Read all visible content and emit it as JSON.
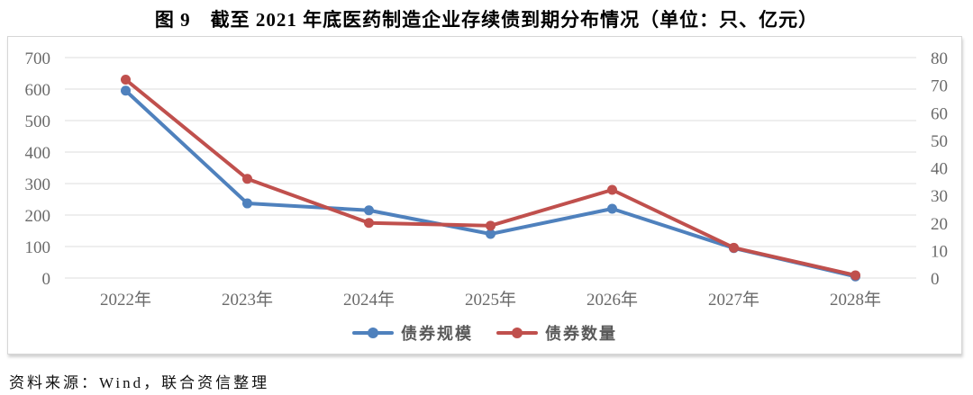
{
  "title": "图 9　截至 2021 年底医药制造企业存续债到期分布情况（单位：只、亿元）",
  "source_note": "资料来源：Wind，联合资信整理",
  "chart_data": {
    "type": "line",
    "categories": [
      "2022年",
      "2023年",
      "2024年",
      "2025年",
      "2026年",
      "2027年",
      "2028年"
    ],
    "series": [
      {
        "name": "债券规模",
        "axis": "left",
        "unit": "亿元",
        "color": "#4F81BD",
        "values": [
          595,
          237,
          215,
          140,
          220,
          95,
          5
        ]
      },
      {
        "name": "债券数量",
        "axis": "right",
        "unit": "只",
        "color": "#C0504D",
        "values": [
          72,
          36,
          20,
          19,
          32,
          11,
          1
        ]
      }
    ],
    "left_axis": {
      "min": 0,
      "max": 700,
      "step": 100
    },
    "right_axis": {
      "min": 0,
      "max": 80,
      "step": 10
    },
    "grid": true,
    "legend_position": "bottom",
    "gridline_color": "#dcdcdc",
    "tick_label_color": "#6a6a6a"
  }
}
